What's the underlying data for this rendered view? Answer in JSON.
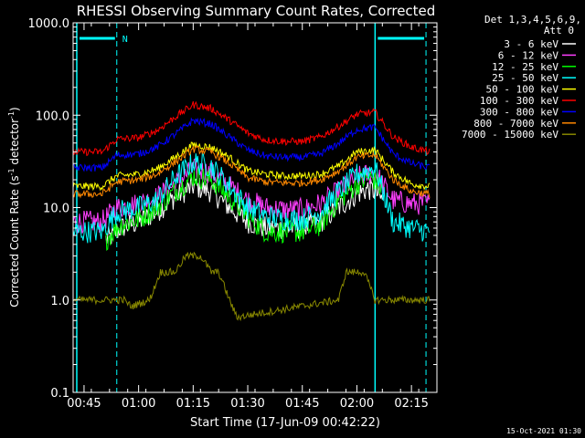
{
  "chart_data": {
    "type": "line",
    "title": "RHESSI Observing Summary Count Rates, Corrected",
    "xlabel": "Start Time (17-Jun-09 00:42:22)",
    "ylabel": "Corrected Count Rate (s⁻¹ detector⁻¹)",
    "ylabel_main": "Corrected Count Rate (s",
    "ylabel_mid": " detector",
    "ylabel_end": ")",
    "ylabel_sup": "-1",
    "y_scale": "log",
    "ylim": [
      0.1,
      1000
    ],
    "xlim": [
      "00:42",
      "02:22"
    ],
    "y_ticks": [
      "0.1",
      "1.0",
      "10.0",
      "100.0",
      "1000.0"
    ],
    "x_ticks": [
      "00:45",
      "01:00",
      "01:15",
      "01:30",
      "01:45",
      "02:00",
      "02:15"
    ],
    "legend_header": [
      "Det 1,3,4,5,6,9,",
      "Att 0"
    ],
    "legend_position": "top-right",
    "footer": "15-Oct-2021 01:30",
    "night_marker_label": "N",
    "vlines_solid": [
      "00:43",
      "02:05"
    ],
    "vlines_dashed": [
      "00:54",
      "02:19"
    ],
    "series": [
      {
        "name": "3 - 6 keV",
        "color": "#ffffff",
        "x": [
          "00:51",
          "00:53",
          "00:55",
          "01:00",
          "01:05",
          "01:10",
          "01:15",
          "01:20",
          "01:25",
          "01:30",
          "01:35",
          "01:40",
          "01:45",
          "01:50",
          "01:55",
          "02:00",
          "02:03",
          "02:05",
          "02:07"
        ],
        "y": [
          4.5,
          5,
          6,
          7,
          9,
          13,
          17,
          15,
          10,
          7,
          6,
          6,
          6,
          7,
          10,
          14,
          16,
          15,
          12
        ]
      },
      {
        "name": "6 - 12 keV",
        "color": "#ff3fff",
        "x": [
          "00:42",
          "00:50",
          "00:54",
          "01:00",
          "01:05",
          "01:10",
          "01:15",
          "01:20",
          "01:25",
          "01:30",
          "01:35",
          "01:40",
          "01:45",
          "01:50",
          "01:55",
          "02:00",
          "02:05",
          "02:10",
          "02:15",
          "02:20"
        ],
        "y": [
          7,
          7,
          10,
          11,
          13,
          18,
          26,
          24,
          17,
          12,
          10,
          9.5,
          9.5,
          11,
          15,
          21,
          24,
          12,
          11,
          11
        ]
      },
      {
        "name": "12 - 25 keV",
        "color": "#00ff00",
        "x": [
          "00:51",
          "00:53",
          "00:55",
          "01:00",
          "01:05",
          "01:10",
          "01:15",
          "01:20",
          "01:25",
          "01:30",
          "01:35",
          "01:40",
          "01:45",
          "01:50",
          "01:55",
          "02:00",
          "02:03",
          "02:05",
          "02:07"
        ],
        "y": [
          4.5,
          5.5,
          6.5,
          7.5,
          10,
          15,
          22,
          20,
          13,
          8,
          5.5,
          5.5,
          5.5,
          6.5,
          12,
          18,
          21,
          20,
          15
        ]
      },
      {
        "name": "25 - 50 keV",
        "color": "#00ffff",
        "x": [
          "00:42",
          "00:50",
          "00:54",
          "01:00",
          "01:05",
          "01:10",
          "01:15",
          "01:20",
          "01:25",
          "01:30",
          "01:35",
          "01:40",
          "01:45",
          "01:50",
          "01:55",
          "02:00",
          "02:05",
          "02:10",
          "02:15",
          "02:20"
        ],
        "y": [
          5.5,
          5.5,
          9,
          10,
          12,
          21,
          31,
          28,
          17,
          10,
          8,
          7.5,
          7.5,
          9,
          15,
          23,
          27,
          7,
          6,
          5.5
        ]
      },
      {
        "name": "50 - 100 keV",
        "color": "#ffff00",
        "x": [
          "00:42",
          "00:50",
          "00:54",
          "01:00",
          "01:05",
          "01:10",
          "01:15",
          "01:20",
          "01:25",
          "01:30",
          "01:35",
          "01:40",
          "01:45",
          "01:50",
          "01:55",
          "02:00",
          "02:05",
          "02:10",
          "02:15",
          "02:20"
        ],
        "y": [
          17,
          17,
          22,
          23,
          26,
          35,
          48,
          45,
          35,
          25,
          23,
          22,
          22,
          23,
          28,
          40,
          42,
          24,
          18,
          17
        ]
      },
      {
        "name": "100 - 300 keV",
        "color": "#ff0000",
        "x": [
          "00:42",
          "00:50",
          "00:54",
          "01:00",
          "01:05",
          "01:10",
          "01:15",
          "01:20",
          "01:25",
          "01:30",
          "01:35",
          "01:40",
          "01:45",
          "01:50",
          "01:55",
          "02:00",
          "02:05",
          "02:10",
          "02:15",
          "02:20"
        ],
        "y": [
          40,
          40,
          55,
          57,
          68,
          95,
          130,
          118,
          88,
          64,
          54,
          52,
          52,
          58,
          76,
          102,
          108,
          58,
          45,
          40
        ]
      },
      {
        "name": "300 - 800 keV",
        "color": "#0000ff",
        "x": [
          "00:42",
          "00:50",
          "00:54",
          "01:00",
          "01:05",
          "01:10",
          "01:15",
          "01:20",
          "01:25",
          "01:30",
          "01:35",
          "01:40",
          "01:45",
          "01:50",
          "01:55",
          "02:00",
          "02:05",
          "02:10",
          "02:15",
          "02:20"
        ],
        "y": [
          27,
          27,
          37,
          38,
          45,
          62,
          88,
          80,
          58,
          42,
          36,
          35,
          35,
          38,
          50,
          70,
          74,
          38,
          30,
          27
        ]
      },
      {
        "name": "800 - 7000 keV",
        "color": "#ff8800",
        "x": [
          "00:42",
          "00:50",
          "00:54",
          "01:00",
          "01:05",
          "01:10",
          "01:15",
          "01:20",
          "01:25",
          "01:30",
          "01:35",
          "01:40",
          "01:45",
          "01:50",
          "01:55",
          "02:00",
          "02:05",
          "02:10",
          "02:15",
          "02:20"
        ],
        "y": [
          14,
          14,
          19,
          20,
          23,
          31,
          43,
          40,
          30,
          21,
          19,
          18.5,
          18.5,
          20,
          25,
          35,
          37,
          20,
          15,
          14
        ]
      },
      {
        "name": "7000 - 15000 keV",
        "color": "#888800",
        "x": [
          "00:42",
          "00:50",
          "00:56",
          "00:58",
          "01:03",
          "01:06",
          "01:10",
          "01:13",
          "01:15",
          "01:17",
          "01:20",
          "01:22",
          "01:25",
          "01:27",
          "01:55",
          "01:57",
          "02:00",
          "02:02",
          "02:05",
          "02:07",
          "02:10",
          "02:20"
        ],
        "y": [
          1,
          1,
          1,
          0.85,
          1,
          2,
          2,
          3,
          3,
          3,
          2,
          2,
          1,
          0.65,
          1,
          2,
          2,
          2,
          1,
          1,
          1,
          1
        ]
      }
    ]
  }
}
